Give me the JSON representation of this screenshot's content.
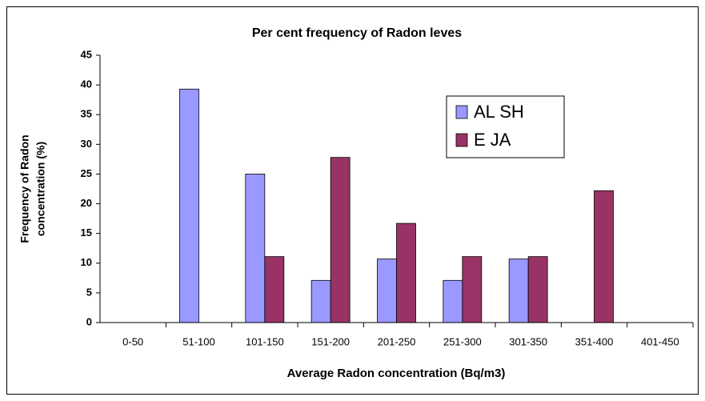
{
  "chart_data": {
    "type": "bar",
    "title": "Per cent frequency of Radon leves",
    "x_label": "Average Radon concentration (Bq/m3)",
    "y_label": [
      "Frequency of Radon",
      "concentration (%)"
    ],
    "categories": [
      "0-50",
      "51-100",
      "101-150",
      "151-200",
      "201-250",
      "251-300",
      "301-350",
      "351-400",
      "401-450"
    ],
    "series": [
      {
        "name": "AL SH",
        "color": "#9999ff",
        "values": [
          0,
          39.3,
          25,
          7.1,
          10.7,
          7.1,
          10.7,
          0,
          0
        ]
      },
      {
        "name": "E JA",
        "color": "#993366",
        "values": [
          0,
          0,
          11.1,
          27.8,
          16.7,
          11.1,
          11.1,
          22.2,
          0
        ]
      }
    ],
    "ylim": [
      0,
      45
    ],
    "yticks": [
      0,
      5,
      10,
      15,
      20,
      25,
      30,
      35,
      40,
      45
    ],
    "grid": false,
    "legend": "upper right"
  }
}
